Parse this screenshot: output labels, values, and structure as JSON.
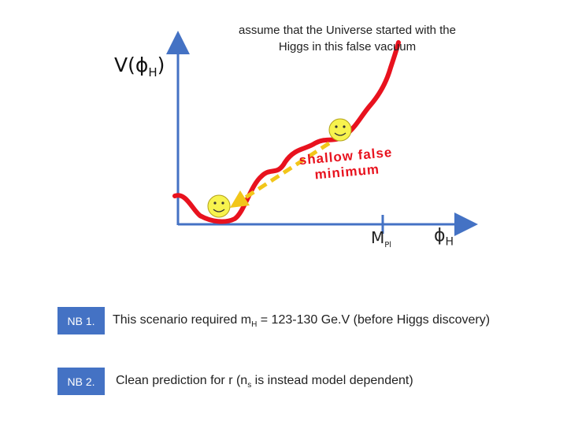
{
  "axes": {
    "y_label": "V(",
    "y_label_sub": "H",
    "y_label_close": ")",
    "x_tick_label": "M",
    "x_tick_label_sub": "Pl",
    "x_label_sub": "H"
  },
  "caption": "assume that the Universe started with the Higgs in this false vacuum",
  "annotation": {
    "line1": "shallow false",
    "line2": "minimum",
    "color": "#e8121e"
  },
  "colors": {
    "axis": "#4472c4",
    "curve": "#e8121e",
    "arrow": "#f2c61a",
    "badge": "#4472c4",
    "smiley": "#f7f34e"
  },
  "icons": [
    "smiley-face-icon",
    "phi-symbol"
  ],
  "notes": [
    {
      "badge": "NB 1.",
      "text_before": "This scenario required m",
      "text_sub": "H",
      "text_after": " = 123-130 Ge.V (before Higgs discovery)"
    },
    {
      "badge": "NB 2.",
      "text_before": "Clean prediction for r  (n",
      "text_sub": "s",
      "text_after": " is instead model dependent)"
    }
  ]
}
